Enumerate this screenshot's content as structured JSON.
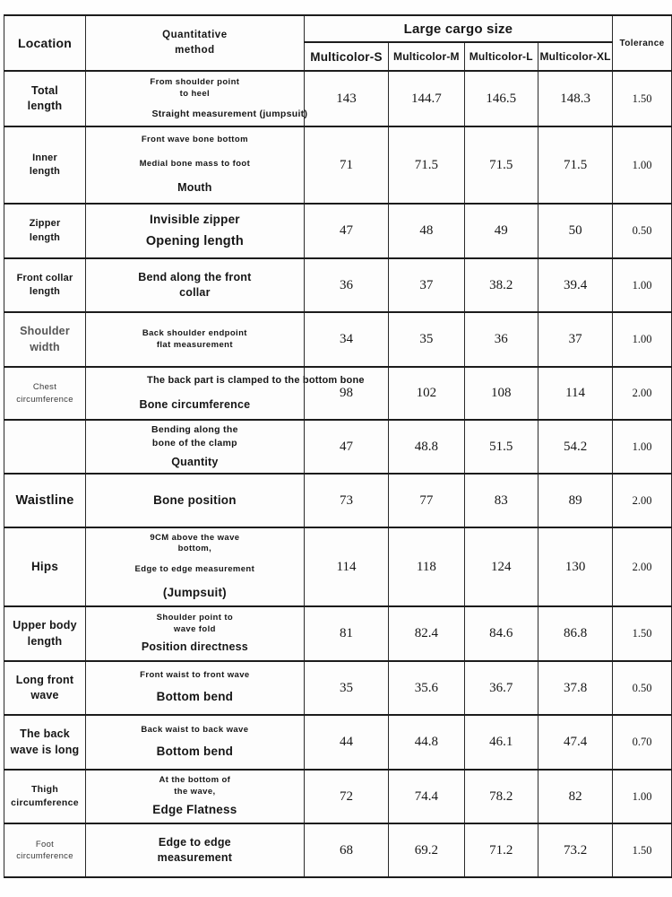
{
  "colors": {
    "background": "#ffffff",
    "border": "#1c1c1c",
    "text": "#161616"
  },
  "table": {
    "header": {
      "location": "Location",
      "method": "Quantitative\nmethod",
      "group": "Large cargo size",
      "sizes": [
        "Multicolor-S",
        "Multicolor-M",
        "Multicolor-L",
        "Multicolor-XL"
      ],
      "tolerance": "Tolerance"
    },
    "rows": [
      {
        "location": {
          "t": "Total\nlength",
          "c": "b12"
        },
        "method": [
          {
            "t": "From shoulder point",
            "c": "b9"
          },
          {
            "t": "to heel",
            "c": "b9"
          },
          {
            "t": "Straight measurement (jumpsuit)",
            "c": "b10 mt8 nowrap shift39"
          }
        ],
        "values": [
          "143",
          "144.7",
          "146.5",
          "148.3"
        ],
        "tolerance": "1.50"
      },
      {
        "location": {
          "t": "Inner\nlength",
          "c": "b11"
        },
        "method": [
          {
            "t": "Front wave bone bottom",
            "c": "b9"
          },
          {
            "t": "Medial bone mass to foot",
            "c": "b9 mt14"
          },
          {
            "t": "Mouth",
            "c": "b12 mt12"
          }
        ],
        "values": [
          "71",
          "71.5",
          "71.5",
          "71.5"
        ],
        "tolerance": "1.00"
      },
      {
        "location": {
          "t": "Zipper\nlength",
          "c": "b11"
        },
        "method": [
          {
            "t": "Invisible zipper",
            "c": "b13"
          },
          {
            "t": "Opening length",
            "c": "b14 mt6"
          }
        ],
        "values": [
          "47",
          "48",
          "49",
          "50"
        ],
        "tolerance": "0.50"
      },
      {
        "location": {
          "t": "Front collar\nlength",
          "c": "b11"
        },
        "method": [
          {
            "t": "Bend along the front",
            "c": "b12"
          },
          {
            "t": "collar",
            "c": "b12"
          }
        ],
        "values": [
          "36",
          "37",
          "38.2",
          "39.4"
        ],
        "tolerance": "1.00"
      },
      {
        "location": {
          "t": "Shoulder\nwidth",
          "c": "b12 gray"
        },
        "method": [
          {
            "t": "Back shoulder endpoint",
            "c": "b9"
          },
          {
            "t": "flat measurement",
            "c": "b9"
          }
        ],
        "values": [
          "34",
          "35",
          "36",
          "37"
        ],
        "tolerance": "1.00"
      },
      {
        "location": {
          "t": "Chest\ncircumference",
          "c": "n9"
        },
        "method": [
          {
            "t": "The back part is clamped to the bottom bone",
            "c": "b11 nowrap shift68"
          },
          {
            "t": "Bone circumference",
            "c": "b12 mt12"
          }
        ],
        "values": [
          "98",
          "102",
          "108",
          "114"
        ],
        "tolerance": "2.00"
      },
      {
        "location": {
          "t": "",
          "c": "n9"
        },
        "method": [
          {
            "t": "Bending along the",
            "c": "b10"
          },
          {
            "t": "bone of the clamp",
            "c": "b10"
          },
          {
            "t": "Quantity",
            "c": "b12 mt6"
          }
        ],
        "values": [
          "47",
          "48.8",
          "51.5",
          "54.2"
        ],
        "tolerance": "1.00"
      },
      {
        "location": {
          "t": "Waistline",
          "c": "b14"
        },
        "method": [
          {
            "t": "Bone position",
            "c": "b13"
          }
        ],
        "values": [
          "73",
          "77",
          "83",
          "89"
        ],
        "tolerance": "2.00"
      },
      {
        "location": {
          "t": "Hips",
          "c": "b13"
        },
        "method": [
          {
            "t": "9CM above the wave",
            "c": "b9"
          },
          {
            "t": "bottom,",
            "c": "b9"
          },
          {
            "t": "Edge to edge measurement",
            "c": "b9 mt10"
          },
          {
            "t": "(Jumpsuit)",
            "c": "b13 mt10"
          }
        ],
        "values": [
          "114",
          "118",
          "124",
          "130"
        ],
        "tolerance": "2.00"
      },
      {
        "location": {
          "t": "Upper body\nlength",
          "c": "b12"
        },
        "method": [
          {
            "t": "Shoulder point to",
            "c": "b9"
          },
          {
            "t": "wave fold",
            "c": "b9"
          },
          {
            "t": "Position directness",
            "c": "b12 mt4"
          }
        ],
        "values": [
          "81",
          "82.4",
          "84.6",
          "86.8"
        ],
        "tolerance": "1.50"
      },
      {
        "location": {
          "t": "Long front\nwave",
          "c": "b12"
        },
        "method": [
          {
            "t": "Front waist to front wave",
            "c": "b9"
          },
          {
            "t": "Bottom bend",
            "c": "b13 mt8"
          }
        ],
        "values": [
          "35",
          "35.6",
          "36.7",
          "37.8"
        ],
        "tolerance": "0.50"
      },
      {
        "location": {
          "t": "The back\nwave is long",
          "c": "b12"
        },
        "method": [
          {
            "t": "Back waist to back wave",
            "c": "b9"
          },
          {
            "t": "Bottom bend",
            "c": "b13 mt8"
          }
        ],
        "values": [
          "44",
          "44.8",
          "46.1",
          "47.4"
        ],
        "tolerance": "0.70"
      },
      {
        "location": {
          "t": "Thigh\ncircumference",
          "c": "b10"
        },
        "method": [
          {
            "t": "At the bottom of",
            "c": "b9"
          },
          {
            "t": "the wave,",
            "c": "b9"
          },
          {
            "t": "Edge Flatness",
            "c": "b13 mt4"
          }
        ],
        "values": [
          "72",
          "74.4",
          "78.2",
          "82"
        ],
        "tolerance": "1.00"
      },
      {
        "location": {
          "t": "Foot\ncircumference",
          "c": "n9"
        },
        "method": [
          {
            "t": "Edge to edge",
            "c": "b12"
          },
          {
            "t": "measurement",
            "c": "b12"
          }
        ],
        "values": [
          "68",
          "69.2",
          "71.2",
          "73.2"
        ],
        "tolerance": "1.50"
      }
    ]
  }
}
